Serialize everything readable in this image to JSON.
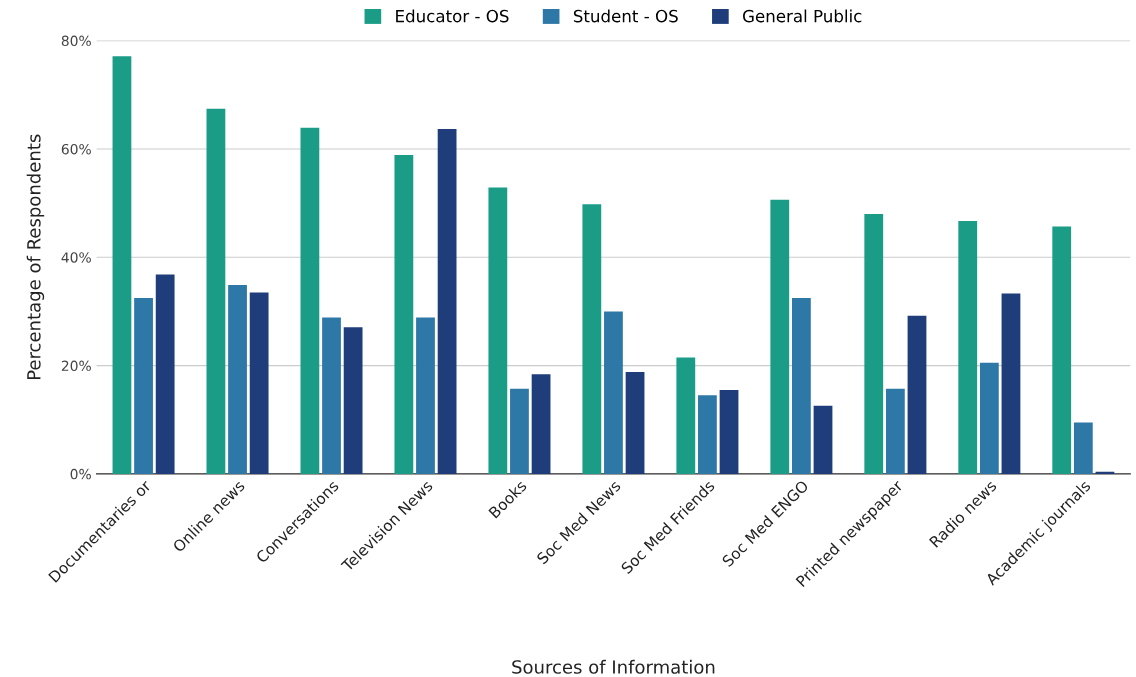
{
  "chart_data": {
    "type": "bar",
    "xlabel": "Sources of Information",
    "ylabel": "Percentage of Respondents",
    "categories": [
      "Documentaries or",
      "Online news",
      "Conversations",
      "Television News",
      "Books",
      "Soc Med News",
      "Soc Med Friends",
      "Soc Med ENGO",
      "Printed newspaper",
      "Radio news",
      "Academic journals"
    ],
    "series": [
      {
        "name": "Educator - OS",
        "color": "#1a9c87",
        "values": [
          77.1,
          67.4,
          63.9,
          58.9,
          52.9,
          49.8,
          21.5,
          50.6,
          48.0,
          46.7,
          45.7
        ]
      },
      {
        "name": "Student - OS",
        "color": "#2e78a8",
        "values": [
          32.5,
          34.9,
          28.9,
          28.9,
          15.7,
          30.0,
          14.5,
          32.5,
          15.7,
          20.5,
          9.5
        ]
      },
      {
        "name": "General Public",
        "color": "#1f3d7a",
        "values": [
          36.8,
          33.5,
          27.1,
          63.7,
          18.4,
          18.8,
          15.5,
          12.6,
          29.2,
          33.3,
          0.4
        ]
      }
    ],
    "ylim": [
      0,
      80
    ],
    "yticks": [
      {
        "value": 0,
        "label": "0%"
      },
      {
        "value": 20,
        "label": "20%"
      },
      {
        "value": 40,
        "label": "40%"
      },
      {
        "value": 60,
        "label": "60%"
      },
      {
        "value": 80,
        "label": "80%"
      }
    ],
    "grid": "y",
    "legend": "top"
  }
}
